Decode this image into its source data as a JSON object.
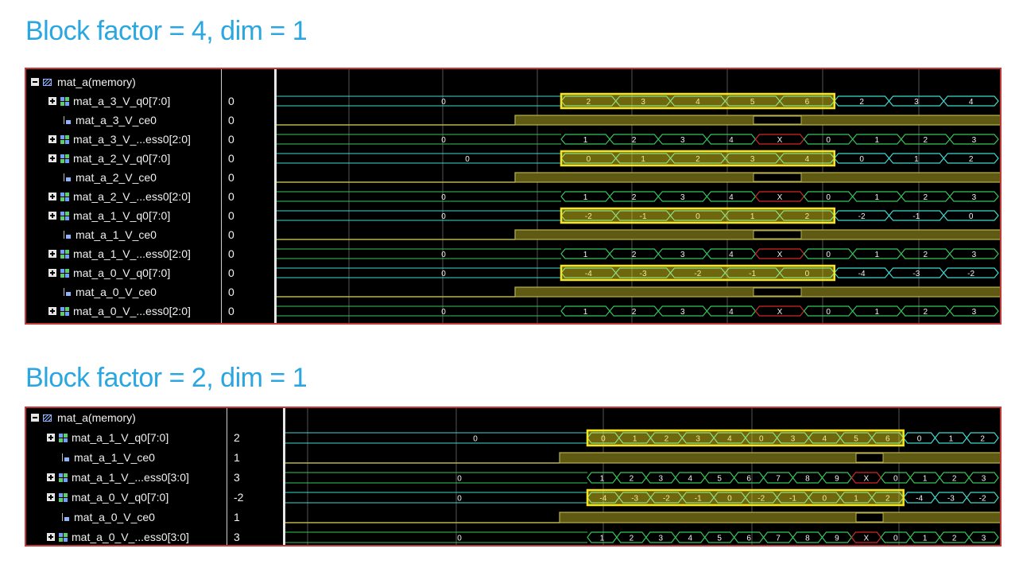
{
  "titles": {
    "top": "Block factor = 4, dim = 1",
    "bottom": "Block factor = 2, dim = 1"
  },
  "colors": {
    "title": "#2aa6e0",
    "bus": "#3fd9d0",
    "bus_alt": "#7fe6c4",
    "ce_line": "#b9b24a",
    "ce_fill": "#5e5a14",
    "addr": "#34c65a",
    "highlight": "#f4e51e",
    "x_state": "#d02828",
    "panel_border": "#c23a3a",
    "grid": "#555555"
  },
  "panel_top": {
    "memory_label": "mat_a(memory)",
    "rows": [
      {
        "name": "mat_a_3_V_q0[7:0]",
        "value": "0",
        "kind": "bus"
      },
      {
        "name": "mat_a_3_V_ce0",
        "value": "0",
        "kind": "bit"
      },
      {
        "name": "mat_a_3_V_...ess0[2:0]",
        "value": "0",
        "kind": "bus"
      },
      {
        "name": "mat_a_2_V_q0[7:0]",
        "value": "0",
        "kind": "bus"
      },
      {
        "name": "mat_a_2_V_ce0",
        "value": "0",
        "kind": "bit"
      },
      {
        "name": "mat_a_2_V_...ess0[2:0]",
        "value": "0",
        "kind": "bus"
      },
      {
        "name": "mat_a_1_V_q0[7:0]",
        "value": "0",
        "kind": "bus"
      },
      {
        "name": "mat_a_1_V_ce0",
        "value": "0",
        "kind": "bit"
      },
      {
        "name": "mat_a_1_V_...ess0[2:0]",
        "value": "0",
        "kind": "bus"
      },
      {
        "name": "mat_a_0_V_q0[7:0]",
        "value": "0",
        "kind": "bus"
      },
      {
        "name": "mat_a_0_V_ce0",
        "value": "0",
        "kind": "bit"
      },
      {
        "name": "mat_a_0_V_...ess0[2:0]",
        "value": "0",
        "kind": "bus"
      }
    ],
    "waves": [
      {
        "type": "bus",
        "color": "bus",
        "initial": "0",
        "pre_label_x": 525,
        "segments": [
          "2",
          "3",
          "4",
          "5",
          "6",
          "2",
          "3",
          "4"
        ],
        "highlight": true
      },
      {
        "type": "ce"
      },
      {
        "type": "bus",
        "color": "addr",
        "initial": "0",
        "pre_label_x": 525,
        "segments": [
          "1",
          "2",
          "3",
          "4",
          "X",
          "0",
          "1",
          "2",
          "3"
        ]
      },
      {
        "type": "bus",
        "color": "bus",
        "initial": "0",
        "pre_label_x": 555,
        "segments": [
          "0",
          "1",
          "2",
          "3",
          "4",
          "0",
          "1",
          "2"
        ],
        "highlight": true
      },
      {
        "type": "ce"
      },
      {
        "type": "bus",
        "color": "addr",
        "initial": "0",
        "pre_label_x": 525,
        "segments": [
          "1",
          "2",
          "3",
          "4",
          "X",
          "0",
          "1",
          "2",
          "3"
        ]
      },
      {
        "type": "bus",
        "color": "bus",
        "initial": "0",
        "pre_label_x": 525,
        "segments": [
          "-2",
          "-1",
          "0",
          "1",
          "2",
          "-2",
          "-1",
          "0"
        ],
        "highlight": true
      },
      {
        "type": "ce"
      },
      {
        "type": "bus",
        "color": "addr",
        "initial": "0",
        "pre_label_x": 525,
        "segments": [
          "1",
          "2",
          "3",
          "4",
          "X",
          "0",
          "1",
          "2",
          "3"
        ]
      },
      {
        "type": "bus",
        "color": "bus",
        "initial": "0",
        "pre_label_x": 525,
        "segments": [
          "-4",
          "-3",
          "-2",
          "-1",
          "0",
          "-4",
          "-3",
          "-2"
        ],
        "highlight": true
      },
      {
        "type": "ce"
      },
      {
        "type": "bus",
        "color": "addr",
        "initial": "0",
        "pre_label_x": 525,
        "segments": [
          "1",
          "2",
          "3",
          "4",
          "X",
          "0",
          "1",
          "2",
          "3"
        ]
      }
    ]
  },
  "panel_bottom": {
    "memory_label": "mat_a(memory)",
    "rows": [
      {
        "name": "mat_a_1_V_q0[7:0]",
        "value": "2",
        "kind": "bus"
      },
      {
        "name": "mat_a_1_V_ce0",
        "value": "1",
        "kind": "bit"
      },
      {
        "name": "mat_a_1_V_...ess0[3:0]",
        "value": "3",
        "kind": "bus"
      },
      {
        "name": "mat_a_0_V_q0[7:0]",
        "value": "-2",
        "kind": "bus"
      },
      {
        "name": "mat_a_0_V_ce0",
        "value": "1",
        "kind": "bit"
      },
      {
        "name": "mat_a_0_V_...ess0[3:0]",
        "value": "3",
        "kind": "bus"
      }
    ],
    "waves": [
      {
        "type": "bus",
        "color": "bus",
        "initial": "0",
        "pre_label_x": 565,
        "segments": [
          "0",
          "1",
          "2",
          "3",
          "4",
          "0",
          "3",
          "4",
          "5",
          "6",
          "0",
          "1",
          "2"
        ],
        "highlight": true
      },
      {
        "type": "ce"
      },
      {
        "type": "bus",
        "color": "addr",
        "initial": "0",
        "pre_label_x": 545,
        "segments": [
          "1",
          "2",
          "3",
          "4",
          "5",
          "6",
          "7",
          "8",
          "9",
          "X",
          "0",
          "1",
          "2",
          "3"
        ]
      },
      {
        "type": "bus",
        "color": "bus",
        "initial": "0",
        "pre_label_x": 545,
        "segments": [
          "-4",
          "-3",
          "-2",
          "-1",
          "0",
          "-2",
          "-1",
          "0",
          "1",
          "2",
          "-4",
          "-3",
          "-2"
        ],
        "highlight": true
      },
      {
        "type": "ce"
      },
      {
        "type": "bus",
        "color": "addr",
        "initial": "0",
        "pre_label_x": 545,
        "segments": [
          "1",
          "2",
          "3",
          "4",
          "5",
          "6",
          "7",
          "8",
          "9",
          "X",
          "0",
          "1",
          "2",
          "3"
        ]
      }
    ]
  }
}
